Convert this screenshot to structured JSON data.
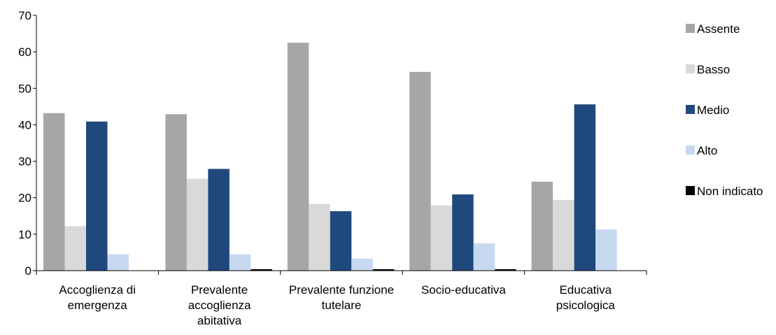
{
  "chart_data": {
    "type": "bar",
    "title": "",
    "xlabel": "",
    "ylabel": "",
    "ylim": [
      0,
      70
    ],
    "yticks": [
      0,
      10,
      20,
      30,
      40,
      50,
      60,
      70
    ],
    "grid": false,
    "legend_position": "right",
    "categories": [
      [
        "Accoglienza di",
        "emergenza"
      ],
      [
        "Prevalente",
        "accoglienza",
        "abitativa"
      ],
      [
        "Prevalente funzione",
        "tutelare"
      ],
      [
        "Socio-educativa"
      ],
      [
        "Educativa",
        "psicologica"
      ]
    ],
    "series": [
      {
        "name": "Assente",
        "color": "#a6a6a6",
        "values": [
          43.2,
          42.9,
          62.5,
          54.5,
          24.4
        ]
      },
      {
        "name": "Basso",
        "color": "#d9d9d9",
        "values": [
          12.2,
          25.2,
          18.3,
          17.9,
          19.4
        ]
      },
      {
        "name": "Medio",
        "color": "#1f497d",
        "values": [
          40.9,
          27.9,
          16.3,
          20.9,
          45.6
        ]
      },
      {
        "name": "Alto",
        "color": "#c6d9f1",
        "values": [
          4.5,
          4.5,
          3.3,
          7.5,
          11.3
        ]
      },
      {
        "name": "Non indicato",
        "color": "#000000",
        "values": [
          0,
          0.4,
          0.4,
          0.4,
          0
        ]
      }
    ]
  }
}
